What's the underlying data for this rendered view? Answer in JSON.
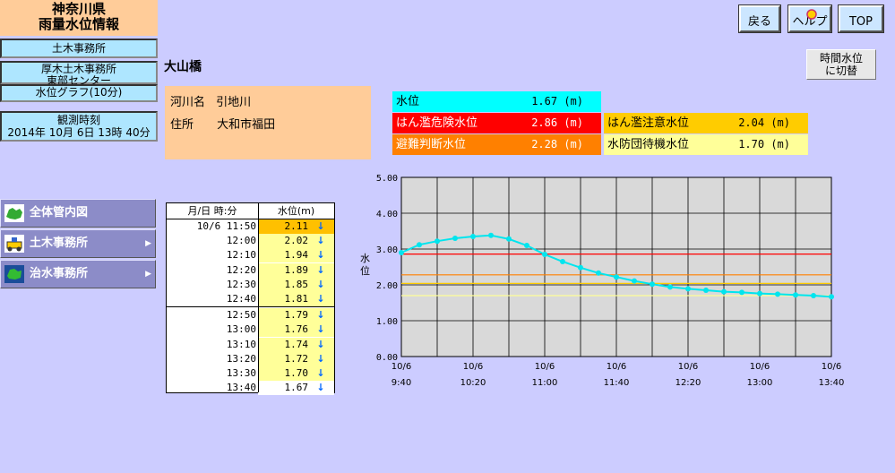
{
  "header": {
    "pref_line1": "神奈川県",
    "pref_line2": "雨量水位情報",
    "nav1": "土木事務所",
    "nav2a": "厚木土木事務所",
    "nav2b": "東部センター",
    "nav3": "水位グラフ(10分)",
    "time_label": "観測時刻",
    "time_value": "2014年 10月 6日 13時 40分"
  },
  "buttons": {
    "back": "戻る",
    "help": "ヘルプ",
    "top": "TOP",
    "switch_line1": "時間水位",
    "switch_line2": "に切替"
  },
  "menu": {
    "item1": "全体管内図",
    "item2": "土木事務所",
    "item3": "治水事務所"
  },
  "station": {
    "name": "大山橋",
    "river_label": "河川名",
    "river": "引地川",
    "addr_label": "住所",
    "addr": "大和市福田"
  },
  "levels": {
    "current_label": "水位",
    "current": "1.67 (m)",
    "danger_label": "はん濫危険水位",
    "danger": "2.86 (m)",
    "caution_label": "はん濫注意水位",
    "caution": "2.04 (m)",
    "evac_label": "避難判断水位",
    "evac": "2.28 (m)",
    "standby_label": "水防団待機水位",
    "standby": "1.70 (m)"
  },
  "colors": {
    "current": "#00ffff",
    "danger": "#ff0000",
    "caution": "#ffcc00",
    "evac": "#ff8000",
    "standby": "#ffff99"
  },
  "table": {
    "h_time": "月/日 時:分",
    "h_level": "水位(m)",
    "rows": [
      {
        "t": "10/6 11:50",
        "v": "2.11",
        "arrow": "↓"
      },
      {
        "t": "12:00",
        "v": "2.02",
        "arrow": "↓"
      },
      {
        "t": "12:10",
        "v": "1.94",
        "arrow": "↓"
      },
      {
        "t": "12:20",
        "v": "1.89",
        "arrow": "↓"
      },
      {
        "t": "12:30",
        "v": "1.85",
        "arrow": "↓"
      },
      {
        "t": "12:40",
        "v": "1.81",
        "arrow": "↓"
      },
      {
        "t": "12:50",
        "v": "1.79",
        "arrow": "↓"
      },
      {
        "t": "13:00",
        "v": "1.76",
        "arrow": "↓"
      },
      {
        "t": "13:10",
        "v": "1.74",
        "arrow": "↓"
      },
      {
        "t": "13:20",
        "v": "1.72",
        "arrow": "↓"
      },
      {
        "t": "13:30",
        "v": "1.70",
        "arrow": "↓"
      },
      {
        "t": "13:40",
        "v": "1.67",
        "arrow": "↓"
      }
    ]
  },
  "chart_data": {
    "type": "line",
    "ylabel": "水位",
    "ylim": [
      0,
      5
    ],
    "yticks": [
      "0.00",
      "1.00",
      "2.00",
      "3.00",
      "4.00",
      "5.00"
    ],
    "xticks": [
      {
        "date": "10/6",
        "time": "9:40"
      },
      {
        "date": "10/6",
        "time": "10:20"
      },
      {
        "date": "10/6",
        "time": "11:00"
      },
      {
        "date": "10/6",
        "time": "11:40"
      },
      {
        "date": "10/6",
        "time": "12:20"
      },
      {
        "date": "10/6",
        "time": "13:00"
      },
      {
        "date": "10/6",
        "time": "13:40"
      }
    ],
    "x": [
      "9:40",
      "9:50",
      "10:00",
      "10:10",
      "10:20",
      "10:30",
      "10:40",
      "10:50",
      "11:00",
      "11:10",
      "11:20",
      "11:30",
      "11:40",
      "11:50",
      "12:00",
      "12:10",
      "12:20",
      "12:30",
      "12:40",
      "12:50",
      "13:00",
      "13:10",
      "13:20",
      "13:30",
      "13:40"
    ],
    "values": [
      2.9,
      3.12,
      3.22,
      3.3,
      3.35,
      3.38,
      3.28,
      3.1,
      2.85,
      2.65,
      2.48,
      2.33,
      2.22,
      2.11,
      2.02,
      1.94,
      1.89,
      1.85,
      1.81,
      1.79,
      1.76,
      1.74,
      1.72,
      1.7,
      1.67
    ],
    "threshold_values": [
      2.86,
      2.28,
      2.04,
      1.7
    ],
    "threshold_colors": [
      "#ff0000",
      "#ff8000",
      "#ffcc00",
      "#ffff99"
    ],
    "series_color": "#00e5ee",
    "grid": true
  }
}
